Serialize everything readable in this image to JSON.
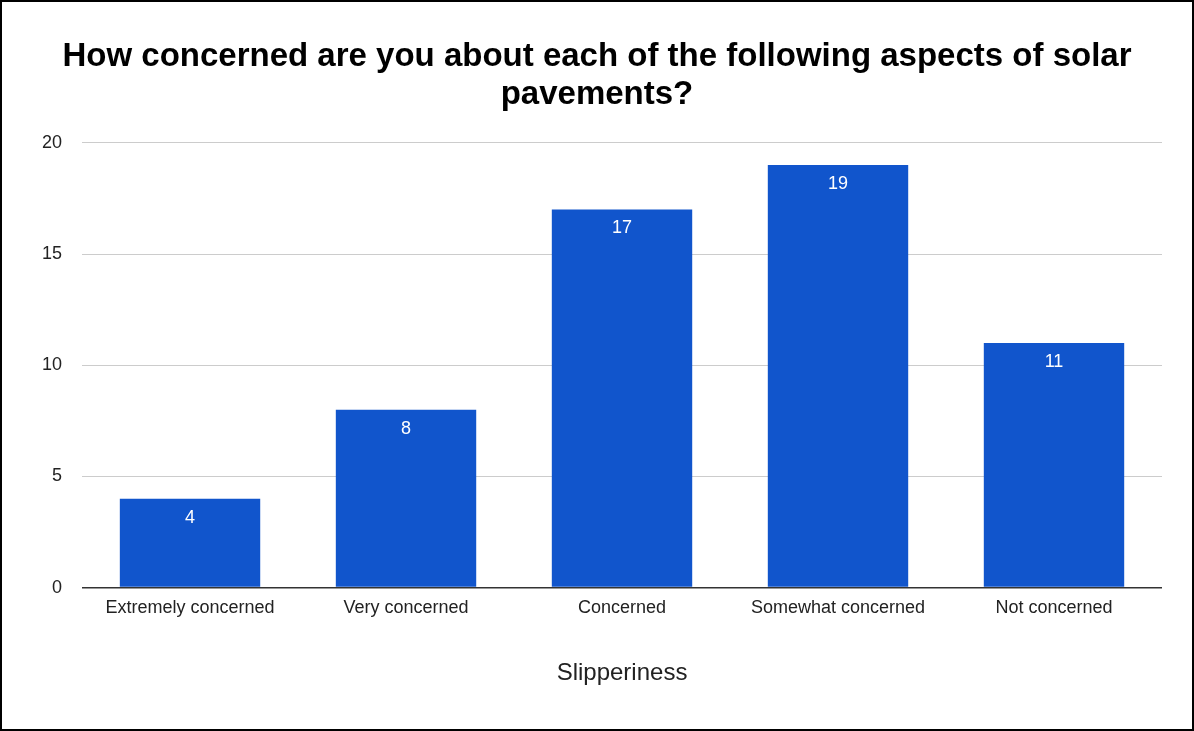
{
  "chart_data": {
    "type": "bar",
    "title": "How concerned are you about each of the following aspects of solar pavements?",
    "xlabel": "Slipperiness",
    "categories": [
      "Extremely concerned",
      "Very concerned",
      "Concerned",
      "Somewhat concerned",
      "Not concerned"
    ],
    "values": [
      4,
      8,
      17,
      19,
      11
    ],
    "color": "#1155cc",
    "ylim": [
      0,
      20
    ],
    "yticks": [
      0,
      5,
      10,
      15,
      20
    ],
    "grid": "y",
    "data_labels": true,
    "legend": false
  }
}
